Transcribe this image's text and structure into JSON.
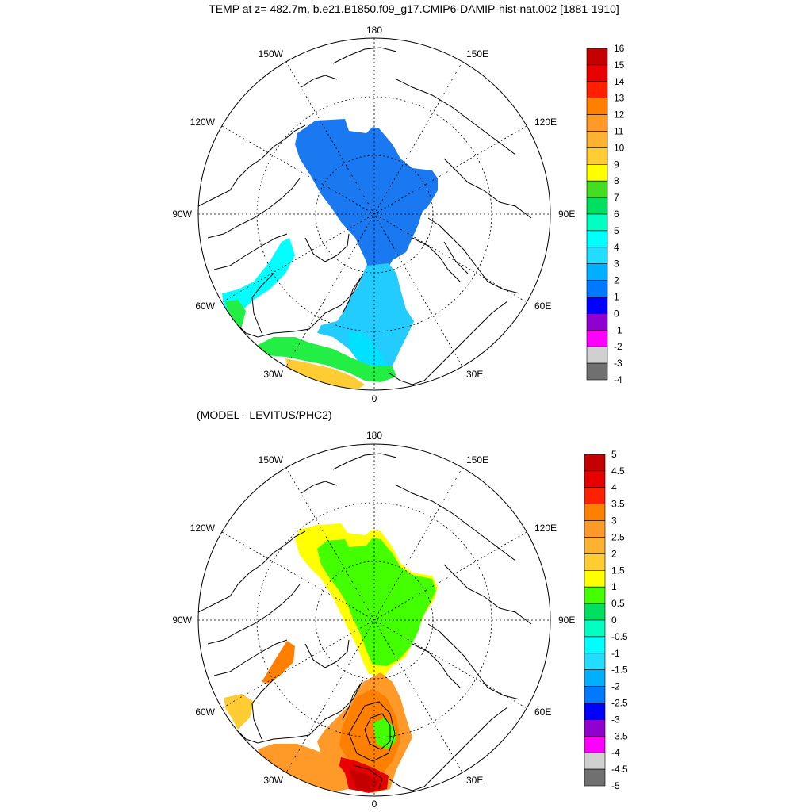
{
  "title": "TEMP at z= 482.7m, b.e21.B1850.f09_g17.CMIP6-DAMIP-hist-nat.002 [1881-1910]",
  "subtitle": "(MODEL - LEVITUS/PHC2)",
  "lon_labels": {
    "top": "180",
    "bottom": "0",
    "left": "90W",
    "right": "90E",
    "ul1": "150W",
    "ul2": "120W",
    "ur1": "150E",
    "ur2": "120E",
    "ll1": "60W",
    "ll2": "30W",
    "lr1": "60E",
    "lr2": "30E"
  },
  "colorbar_top": {
    "labels": [
      "16",
      "15",
      "14",
      "13",
      "12",
      "11",
      "10",
      "9",
      "8",
      "7",
      "6",
      "5",
      "4",
      "3",
      "2",
      "1",
      "0",
      "-1",
      "-2",
      "-3",
      "-4"
    ],
    "colors": [
      "#c40000",
      "#e80000",
      "#ff2000",
      "#ff8000",
      "#ff9a28",
      "#ffb232",
      "#ffcc33",
      "#ffff00",
      "#44dd22",
      "#00e060",
      "#00ffc0",
      "#00ffff",
      "#22ddff",
      "#00b0ff",
      "#0078ff",
      "#0000ff",
      "#9000d0",
      "#ff00ff",
      "#d0d0d0",
      "#707070"
    ]
  },
  "colorbar_bottom": {
    "labels": [
      "5",
      "4.5",
      "4",
      "3.5",
      "3",
      "2.5",
      "2",
      "1.5",
      "1",
      "0.5",
      "0",
      "-0.5",
      "-1",
      "-1.5",
      "-2",
      "-2.5",
      "-3",
      "-3.5",
      "-4",
      "-4.5",
      "-5"
    ],
    "colors": [
      "#c40000",
      "#e80000",
      "#ff2000",
      "#ff8000",
      "#ff9a28",
      "#ffb232",
      "#ffcc33",
      "#ffff00",
      "#44ff00",
      "#00e060",
      "#00ffc0",
      "#00ffff",
      "#22ddff",
      "#00b0ff",
      "#0078ff",
      "#0000ff",
      "#9000d0",
      "#ff00ff",
      "#d0d0d0",
      "#707070"
    ]
  },
  "map_colors": {
    "top_main": "#1a78f0",
    "top_atlantic": "#22ccff",
    "top_atlantic_core": "#00e0ff",
    "top_green": "#22ee44",
    "top_yellow": "#ffcc33",
    "top_orange": "#ffb232",
    "bottom_main": "#44ff00",
    "bottom_yellow": "#ffff00",
    "bottom_orange": "#ff9a28",
    "bottom_dark_orange": "#ff8000",
    "bottom_red": "#e80000",
    "bottom_darkred": "#c40000"
  }
}
